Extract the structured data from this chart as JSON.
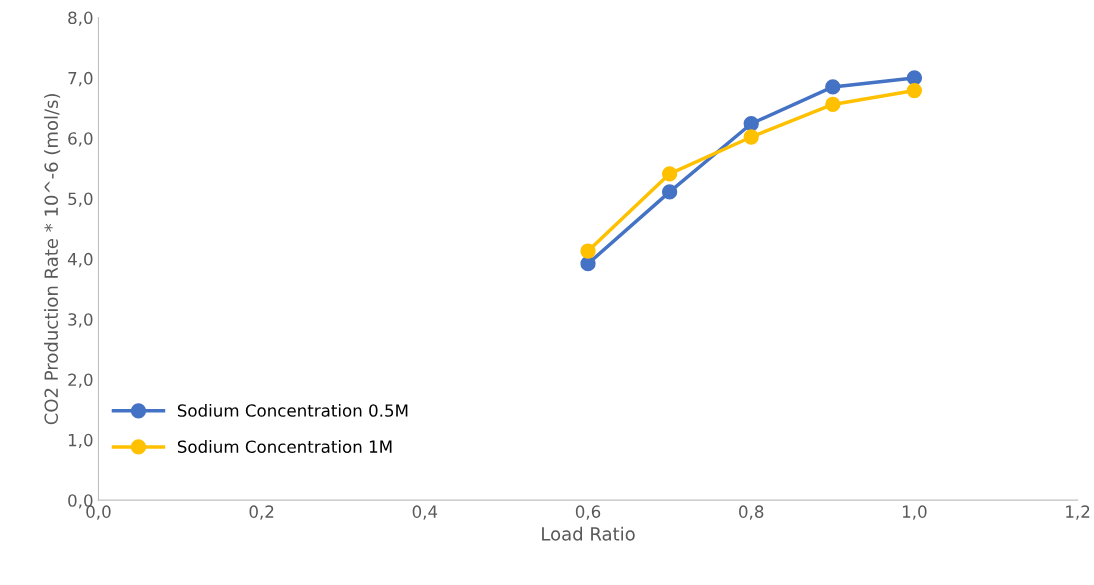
{
  "chart_data": {
    "type": "line",
    "xlabel": "Load Ratio",
    "ylabel": "CO2 Production Rate * 10^-6 (mol/s)",
    "x": [
      0.6,
      0.7,
      0.8,
      0.9,
      1.0
    ],
    "series": [
      {
        "name": "Sodium Concentration 0.5M",
        "color": "#4472c4",
        "values": [
          3.92,
          5.11,
          6.24,
          6.85,
          7.0
        ]
      },
      {
        "name": "Sodium Concentration 1M",
        "color": "#ffc000",
        "values": [
          4.13,
          5.41,
          6.02,
          6.56,
          6.79
        ]
      }
    ],
    "xlim": [
      0,
      1.2
    ],
    "ylim": [
      0,
      8
    ],
    "xticks": [
      {
        "value": 0,
        "label": "0,0"
      },
      {
        "value": 0.2,
        "label": "0,2"
      },
      {
        "value": 0.4,
        "label": "0,4"
      },
      {
        "value": 0.6,
        "label": "0,6"
      },
      {
        "value": 0.8,
        "label": "0,8"
      },
      {
        "value": 1.0,
        "label": "1,0"
      },
      {
        "value": 1.2,
        "label": "1,2"
      }
    ],
    "yticks": [
      {
        "value": 0,
        "label": "0,0"
      },
      {
        "value": 1,
        "label": "1,0"
      },
      {
        "value": 2,
        "label": "2,0"
      },
      {
        "value": 3,
        "label": "3,0"
      },
      {
        "value": 4,
        "label": "4,0"
      },
      {
        "value": 5,
        "label": "5,0"
      },
      {
        "value": 6,
        "label": "6,0"
      },
      {
        "value": 7,
        "label": "7,0"
      },
      {
        "value": 8,
        "label": "8,0"
      }
    ],
    "grid": false,
    "legend": "bottom left",
    "marker": "circle",
    "line_style": "solid"
  }
}
